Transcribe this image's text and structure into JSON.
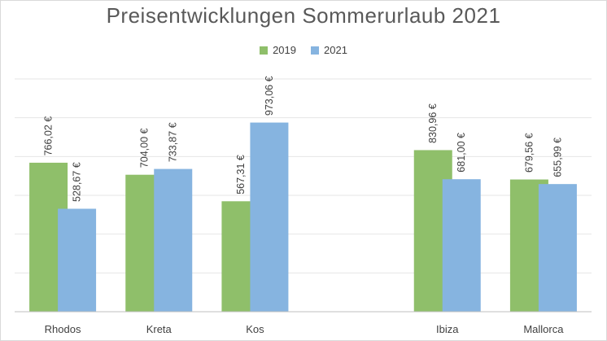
{
  "chart_data": {
    "type": "bar",
    "title": "Preisentwicklungen Sommerurlaub 2021",
    "categories": [
      "Rhodos",
      "Kreta",
      "Kos",
      "",
      "Ibiza",
      "Mallorca"
    ],
    "series": [
      {
        "name": "2019",
        "color": "#8fbf6a",
        "values": [
          766.02,
          704.0,
          567.31,
          null,
          830.96,
          679.56
        ],
        "labels": [
          "766,02 €",
          "704,00 €",
          "567,31 €",
          "",
          "830,96 €",
          "679,56 €"
        ]
      },
      {
        "name": "2021",
        "color": "#86b4e0",
        "values": [
          528.67,
          733.87,
          973.06,
          null,
          681.0,
          655.99
        ],
        "labels": [
          "528,67 €",
          "733,87 €",
          "973,06 €",
          "",
          "681,00 €",
          "655,99 €"
        ]
      }
    ],
    "ylim": [
      0,
      1200
    ],
    "grid": true,
    "legend_position": "top",
    "data_labels": true
  }
}
